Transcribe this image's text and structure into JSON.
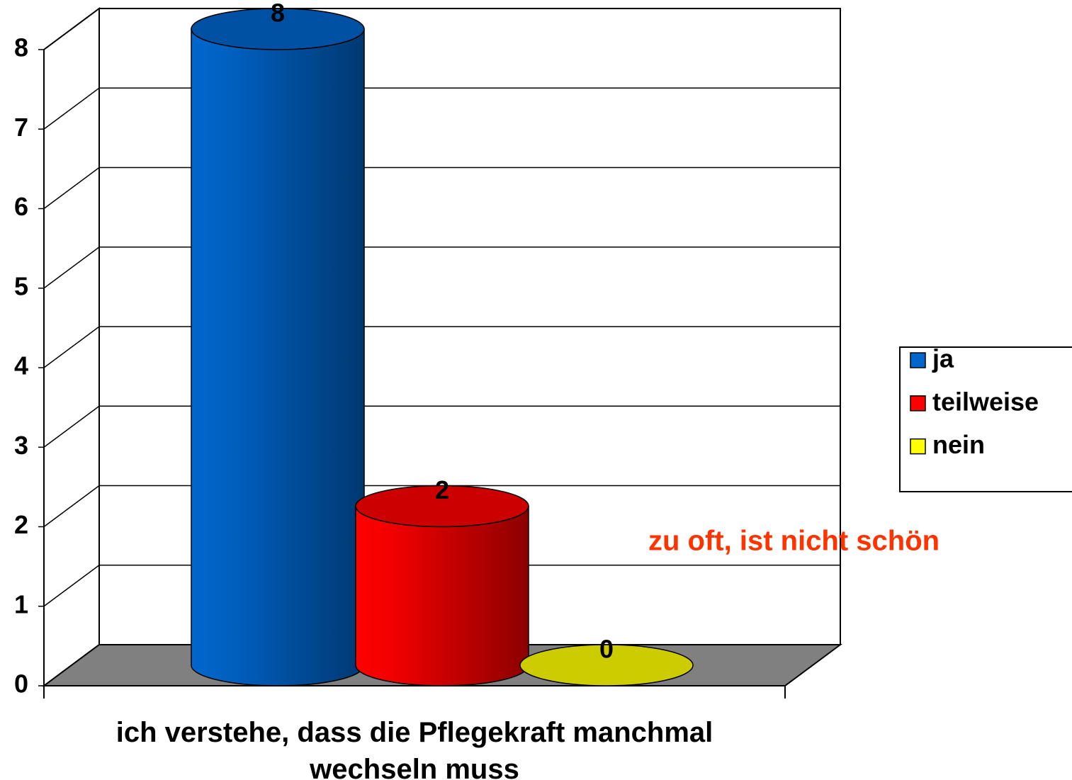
{
  "chart_data": {
    "type": "bar",
    "categories": [
      "ich verstehe, dass die Pflegekraft manchmal wechseln muss"
    ],
    "series": [
      {
        "name": "ja",
        "color": "#0066cc",
        "values": [
          8
        ]
      },
      {
        "name": "teilweise",
        "color": "#ff0000",
        "values": [
          2
        ]
      },
      {
        "name": "nein",
        "color": "#ffff00",
        "values": [
          0
        ]
      }
    ],
    "ylim": [
      0,
      8
    ],
    "yticks": [
      0,
      1,
      2,
      3,
      4,
      5,
      6,
      7,
      8
    ],
    "grid": true,
    "legend": "right",
    "annotations": [
      {
        "text": "zu oft, ist nicht schön",
        "color": "#ff3300"
      }
    ]
  }
}
